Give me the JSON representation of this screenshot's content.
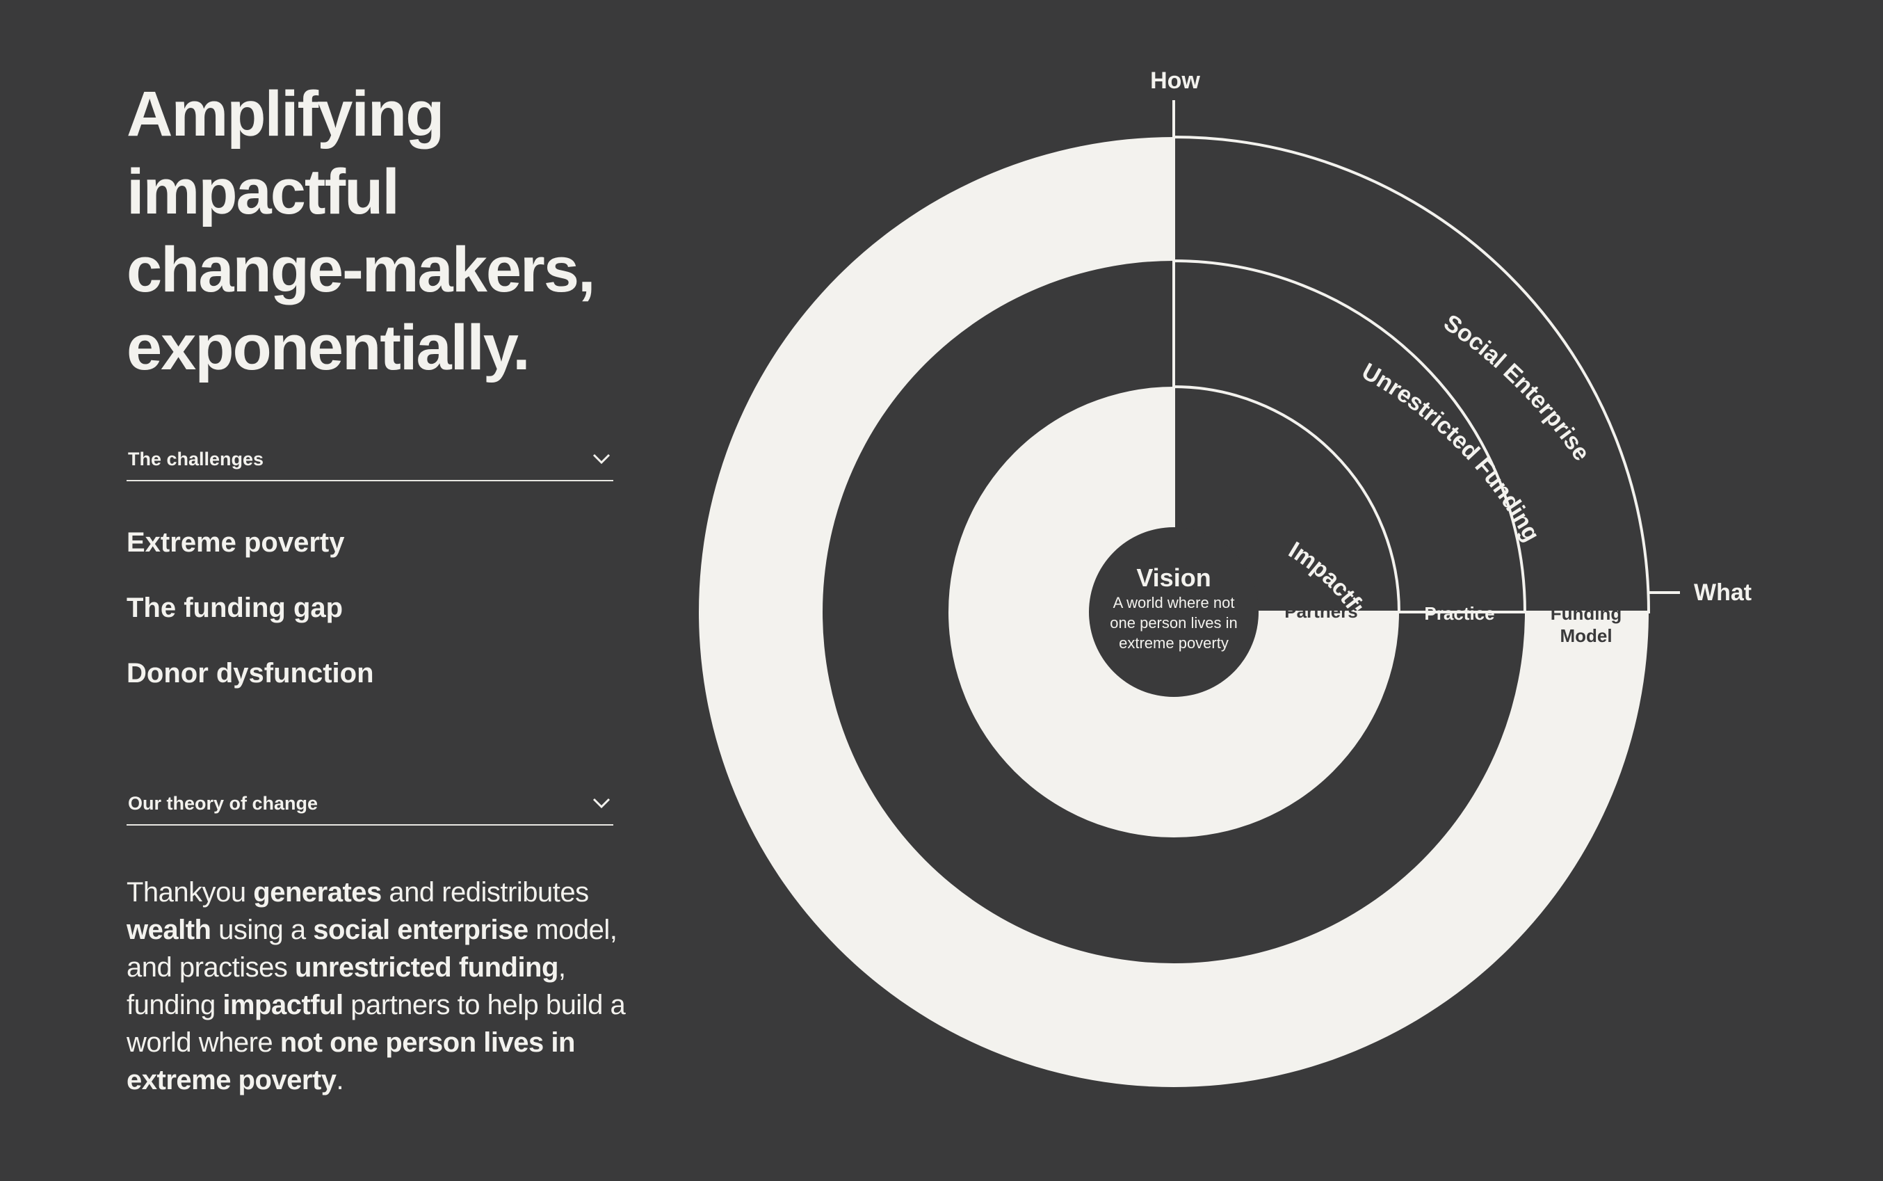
{
  "headline": {
    "lines": [
      "Amplifying",
      "impactful",
      "change-makers,",
      "exponentially."
    ]
  },
  "challenges": {
    "title": "The challenges",
    "items": [
      "Extreme poverty",
      "The funding gap",
      "Donor dysfunction"
    ]
  },
  "theory": {
    "title": "Our theory of change",
    "segments": [
      {
        "text": "Thankyou ",
        "bold": false
      },
      {
        "text": "generates",
        "bold": true
      },
      {
        "text": " and redistributes ",
        "bold": false
      },
      {
        "text": "wealth",
        "bold": true
      },
      {
        "text": " using a ",
        "bold": false
      },
      {
        "text": "social enterprise",
        "bold": true
      },
      {
        "text": " model, and practises ",
        "bold": false
      },
      {
        "text": "unrestricted funding",
        "bold": true
      },
      {
        "text": ", funding ",
        "bold": false
      },
      {
        "text": "impactful",
        "bold": true
      },
      {
        "text": " partners to help build a world where ",
        "bold": false
      },
      {
        "text": "not one person lives in extreme poverty",
        "bold": true
      },
      {
        "text": ".",
        "bold": false
      }
    ]
  },
  "diagram": {
    "axis_how": "How",
    "axis_what": "What",
    "vision_title": "Vision",
    "vision_text": [
      "A world where not",
      "one person lives in",
      "extreme poverty"
    ],
    "rings": [
      {
        "how": "Impactful",
        "what": "Partners"
      },
      {
        "how": "Unrestricted Funding",
        "what": "Practice"
      },
      {
        "how": "Social Enterprise",
        "what": [
          "Funding",
          "Model"
        ]
      }
    ]
  },
  "colors": {
    "background": "#3a3a3b",
    "light": "#f3f2ee"
  },
  "icons": {
    "accordion": "chevron-down-icon"
  }
}
